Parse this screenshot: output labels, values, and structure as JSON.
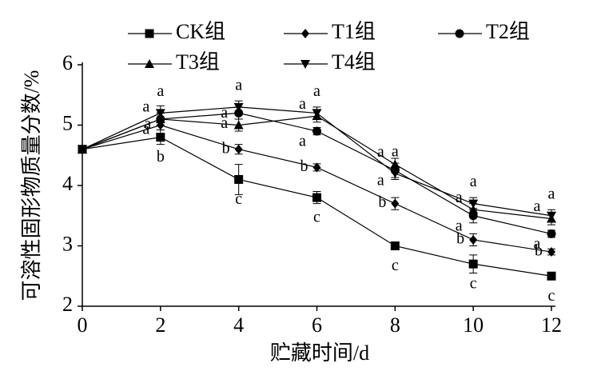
{
  "chart_data": {
    "type": "line",
    "x_label": "贮藏时间/d",
    "y_label": "可溶性固形物质量分数/%",
    "x": [
      0,
      2,
      4,
      6,
      8,
      10,
      12
    ],
    "xlim": [
      0,
      12
    ],
    "xticks": [
      0,
      2,
      4,
      6,
      8,
      10,
      12
    ],
    "ylim": [
      2,
      6
    ],
    "yticks": [
      2,
      3,
      4,
      5,
      6
    ],
    "series": [
      {
        "name": "CK组",
        "color": "#000000",
        "marker": "square",
        "values": [
          4.6,
          4.8,
          4.1,
          3.8,
          3.0,
          2.7,
          2.5
        ],
        "errors": [
          0.03,
          0.12,
          0.25,
          0.1,
          0.03,
          0.15,
          0.06
        ],
        "labels": [
          null,
          "b",
          "c",
          "c",
          "c",
          "c",
          "c"
        ]
      },
      {
        "name": "T1组",
        "color": "#000000",
        "marker": "diamond",
        "values": [
          4.6,
          5.0,
          4.6,
          4.3,
          3.7,
          3.1,
          2.9
        ],
        "errors": [
          0.03,
          0.08,
          0.08,
          0.06,
          0.1,
          0.1,
          0.05
        ],
        "labels": [
          null,
          "a",
          "b",
          "b",
          "b",
          "b",
          "b"
        ]
      },
      {
        "name": "T2组",
        "color": "#000000",
        "marker": "circle",
        "values": [
          4.6,
          5.1,
          5.2,
          4.9,
          4.25,
          3.5,
          3.2
        ],
        "errors": [
          0.03,
          0.1,
          0.1,
          0.06,
          0.12,
          0.12,
          0.06
        ],
        "labels": [
          null,
          "a",
          "a",
          "a",
          "a",
          "a",
          "a"
        ]
      },
      {
        "name": "T3组",
        "color": "#000000",
        "marker": "triangle-up",
        "values": [
          4.6,
          5.1,
          5.0,
          5.15,
          4.35,
          3.6,
          3.45
        ],
        "errors": [
          0.03,
          0.1,
          0.1,
          0.1,
          0.1,
          0.1,
          0.1
        ],
        "labels": [
          null,
          "a",
          "a",
          "a",
          "a",
          "a",
          "a"
        ]
      },
      {
        "name": "T4组",
        "color": "#000000",
        "marker": "triangle-down",
        "values": [
          4.6,
          5.2,
          5.3,
          5.2,
          4.2,
          3.7,
          3.5
        ],
        "errors": [
          0.03,
          0.12,
          0.1,
          0.1,
          0.1,
          0.1,
          0.1
        ],
        "labels": [
          null,
          "a",
          "a",
          "a",
          "a",
          "a",
          "a"
        ]
      }
    ]
  }
}
